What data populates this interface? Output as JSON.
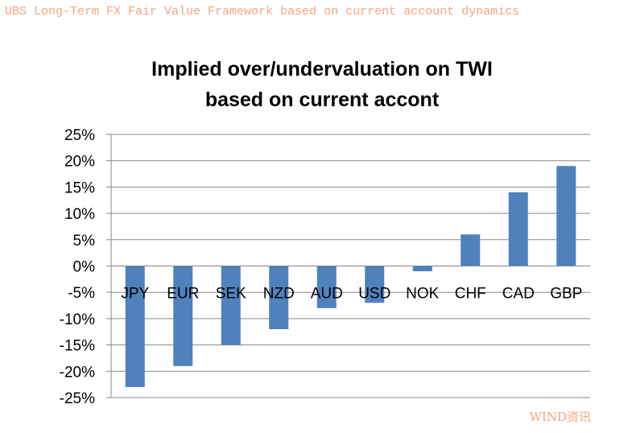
{
  "header": {
    "caption": "UBS Long-Term FX Fair Value Framework based on current account dynamics"
  },
  "watermark": "WIND资讯",
  "chart_data": {
    "type": "bar",
    "title_lines": [
      "Implied over/undervaluation on TWI",
      "based on current accont"
    ],
    "categories": [
      "JPY",
      "EUR",
      "SEK",
      "NZD",
      "AUD",
      "USD",
      "NOK",
      "CHF",
      "CAD",
      "GBP"
    ],
    "values": [
      -23,
      -19,
      -15,
      -12,
      -8,
      -7,
      -1,
      6,
      14,
      19
    ],
    "ylim": [
      -25,
      25
    ],
    "yticks": [
      25,
      20,
      15,
      10,
      5,
      0,
      -5,
      -10,
      -15,
      -20,
      -25
    ],
    "ytick_labels": [
      "25%",
      "20%",
      "15%",
      "10%",
      "5%",
      "0%",
      "-5%",
      "-10%",
      "-15%",
      "-20%",
      "-25%"
    ],
    "grid": true,
    "legend": false,
    "bar_color": "#4f81bd",
    "grid_color": "#878787"
  }
}
